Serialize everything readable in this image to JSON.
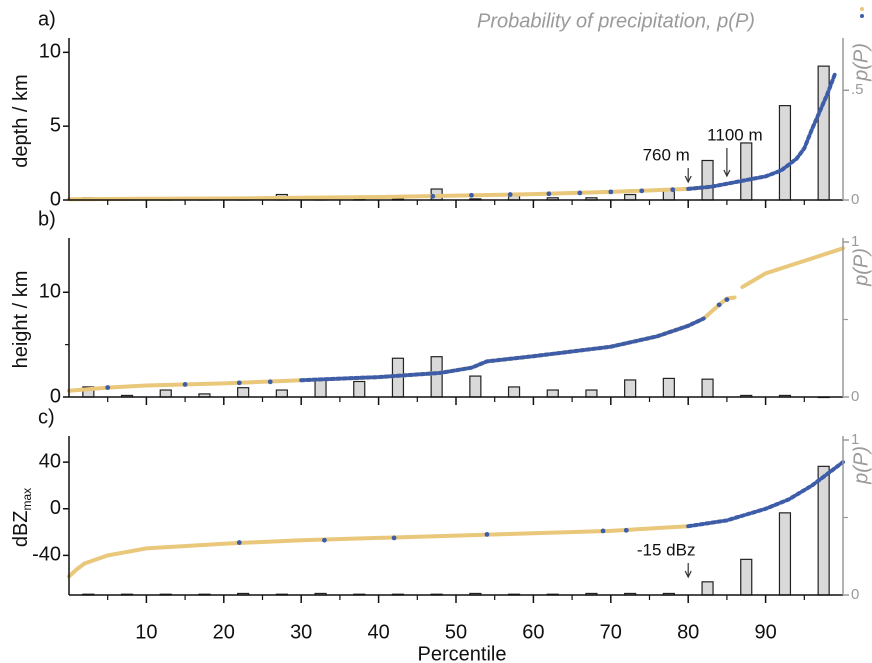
{
  "chart_data": [
    {
      "type": "combo",
      "label": "a)",
      "title": "Probability of precipitation, p(P)",
      "ylabel": "depth / km",
      "y2label": "p(P)",
      "xlim": [
        0,
        100
      ],
      "ylim": [
        0,
        10.7
      ],
      "yticks": [
        0,
        5,
        10
      ],
      "y2lim": [
        0,
        0.72
      ],
      "y2ticks": [
        0,
        {
          "value": 0.5,
          "label": ".5"
        }
      ],
      "series": [
        {
          "color": "#e9c77b",
          "style": "line",
          "x": [
            0,
            10,
            20,
            30,
            40,
            50,
            60,
            70,
            80,
            83
          ],
          "values": [
            0.05,
            0.08,
            0.1,
            0.15,
            0.2,
            0.3,
            0.4,
            0.55,
            0.75,
            0.9
          ]
        },
        {
          "color": "#3d5da9",
          "style": "line",
          "x": [
            80,
            83,
            86,
            88,
            90,
            92,
            94,
            95,
            96,
            97,
            98,
            99
          ],
          "values": [
            0.75,
            0.9,
            1.2,
            1.4,
            1.6,
            2.0,
            2.8,
            3.5,
            4.8,
            6,
            7.2,
            8.6
          ]
        },
        {
          "color": "#3d5da9",
          "style": "dots",
          "x": [
            47,
            52,
            57,
            62,
            66,
            70,
            74,
            78
          ],
          "values": [
            0.25,
            0.32,
            0.37,
            0.42,
            0.48,
            0.55,
            0.62,
            0.7
          ]
        }
      ],
      "bars": {
        "axis": "y2",
        "color": "#d9d9d9",
        "x": [
          2.5,
          7.5,
          12.5,
          17.5,
          22.5,
          27.5,
          32.5,
          37.5,
          42.5,
          47.5,
          52.5,
          57.5,
          62.5,
          67.5,
          72.5,
          77.5,
          82.5,
          87.5,
          92.5,
          97.5
        ],
        "values": [
          0.01,
          0.005,
          0.005,
          0.005,
          0.005,
          0.025,
          0.005,
          0.005,
          0.005,
          0.05,
          0.005,
          0.02,
          0.01,
          0.01,
          0.025,
          0.05,
          0.18,
          0.26,
          0.43,
          0.61
        ]
      },
      "annotations": [
        {
          "text": "760 m",
          "x": 80
        },
        {
          "text": "1100 m",
          "x": 85
        }
      ]
    },
    {
      "type": "combo",
      "label": "b)",
      "ylabel": "height / km",
      "y2label": "p(P)",
      "xlim": [
        0,
        100
      ],
      "ylim": [
        0,
        14.8
      ],
      "yticks": [
        0,
        10
      ],
      "yminorticks": [
        5
      ],
      "y2lim": [
        0,
        1
      ],
      "y2ticks": [
        0,
        1
      ],
      "y2minorticks": [
        0.5
      ],
      "series": [
        {
          "color": "#e9c77b",
          "style": "line",
          "x": [
            0,
            5,
            10,
            20,
            30,
            40,
            48,
            52,
            54,
            60,
            70,
            76,
            80,
            82,
            84,
            85,
            86,
            86.5,
            87,
            90,
            95,
            100
          ],
          "values": [
            0.6,
            0.9,
            1.1,
            1.3,
            1.6,
            1.9,
            2.3,
            2.8,
            3.4,
            3.9,
            4.8,
            5.8,
            6.8,
            7.5,
            8.8,
            9.4,
            9.5,
            null,
            10.5,
            11.8,
            13,
            14.2
          ]
        },
        {
          "color": "#3d5da9",
          "style": "line",
          "x": [
            30,
            40,
            48,
            52,
            54,
            60,
            70,
            76,
            80,
            82
          ],
          "values": [
            1.6,
            1.9,
            2.3,
            2.8,
            3.4,
            3.9,
            4.8,
            5.8,
            6.8,
            7.5
          ]
        },
        {
          "color": "#3d5da9",
          "style": "dots",
          "x": [
            5,
            15,
            22,
            26,
            84,
            85
          ],
          "values": [
            0.9,
            1.2,
            1.35,
            1.45,
            8.8,
            9.3
          ]
        }
      ],
      "bars": {
        "axis": "y2",
        "color": "#d9d9d9",
        "x": [
          2.5,
          7.5,
          12.5,
          17.5,
          22.5,
          27.5,
          32.5,
          37.5,
          42.5,
          47.5,
          52.5,
          57.5,
          62.5,
          67.5,
          72.5,
          77.5,
          82.5,
          87.5,
          92.5,
          97.5
        ],
        "values": [
          0.065,
          0.01,
          0.045,
          0.02,
          0.06,
          0.045,
          0.11,
          0.1,
          0.25,
          0.26,
          0.135,
          0.065,
          0.045,
          0.045,
          0.11,
          0.12,
          0.115,
          0.01,
          0.01,
          0
        ]
      }
    },
    {
      "type": "combo",
      "label": "c)",
      "ylabel": "dBZ",
      "ylabel_sub": "max",
      "y2label": "p(P)",
      "xlabel": "Percentile",
      "xlim": [
        0,
        100
      ],
      "xticks": [
        10,
        20,
        30,
        40,
        50,
        60,
        70,
        80,
        90
      ],
      "xminorticks": [
        5,
        15,
        25,
        35,
        45,
        55,
        65,
        75,
        85,
        95
      ],
      "ylim": [
        -74,
        59
      ],
      "yticks": [
        -40,
        0,
        40
      ],
      "y2lim": [
        0,
        1
      ],
      "y2ticks": [
        0,
        1
      ],
      "y2minorticks": [
        0.5
      ],
      "series": [
        {
          "color": "#e9c77b",
          "style": "line",
          "x": [
            0,
            1,
            2,
            5,
            10,
            20,
            30,
            40,
            50,
            60,
            70,
            80
          ],
          "values": [
            -58,
            -52,
            -47,
            -40,
            -34,
            -30,
            -27,
            -25,
            -23,
            -21,
            -19,
            -15
          ]
        },
        {
          "color": "#3d5da9",
          "style": "line",
          "x": [
            80,
            85,
            88,
            90,
            93,
            96,
            98,
            100
          ],
          "values": [
            -15,
            -10,
            -4,
            0,
            8,
            20,
            30,
            40
          ]
        },
        {
          "color": "#3d5da9",
          "style": "dots",
          "x": [
            22,
            33,
            42,
            54,
            69,
            72
          ],
          "values": [
            -29,
            -27,
            -25,
            -22,
            -19,
            -18.5
          ]
        }
      ],
      "bars": {
        "axis": "y2",
        "color": "#d9d9d9",
        "x": [
          2.5,
          7.5,
          12.5,
          17.5,
          22.5,
          27.5,
          32.5,
          37.5,
          42.5,
          47.5,
          52.5,
          57.5,
          62.5,
          67.5,
          72.5,
          77.5,
          82.5,
          87.5,
          92.5,
          97.5
        ],
        "values": [
          0.005,
          0.005,
          0.005,
          0.005,
          0.01,
          0.005,
          0.01,
          0.005,
          0.005,
          0.005,
          0.01,
          0.005,
          0.005,
          0.01,
          0.01,
          0.01,
          0.085,
          0.23,
          0.53,
          0.83
        ]
      },
      "annotations": [
        {
          "text": "-15 dBz",
          "x": 80
        }
      ]
    }
  ]
}
